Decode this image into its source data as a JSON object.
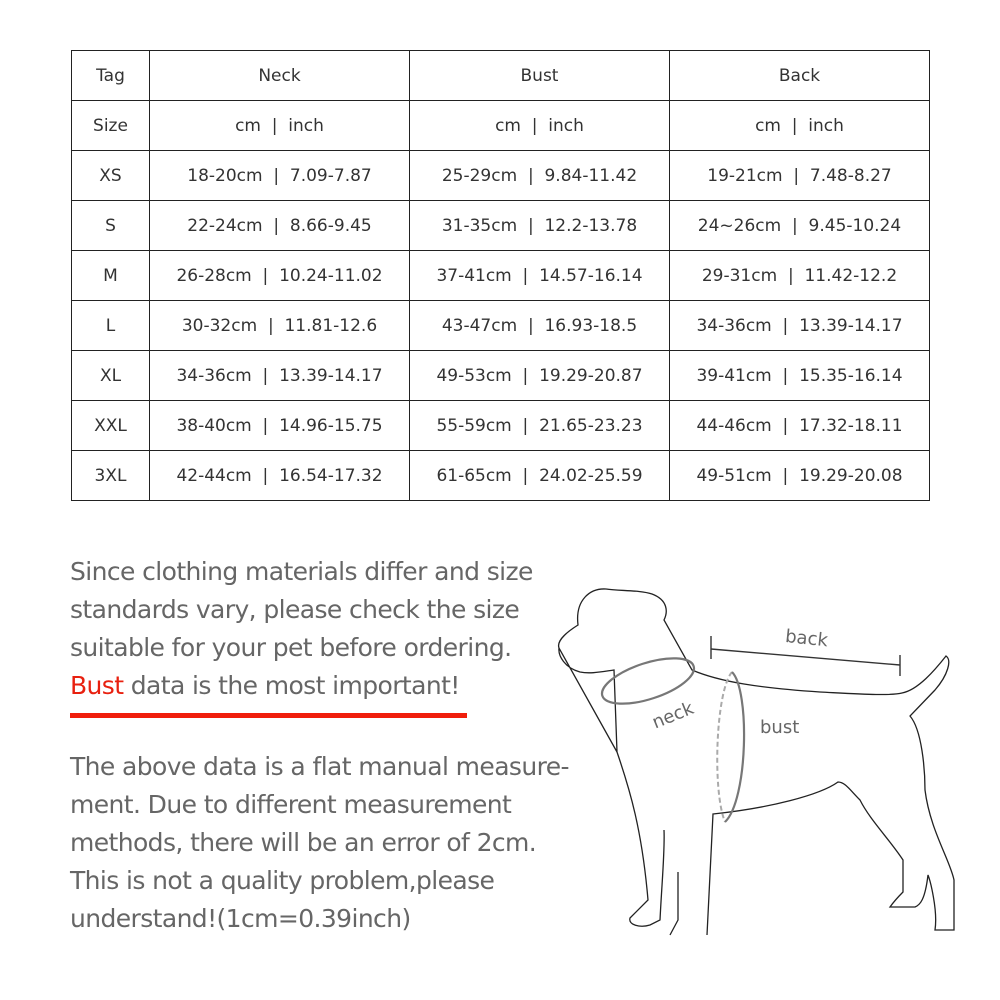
{
  "table": {
    "headers": [
      "Tag",
      "Neck",
      "Bust",
      "Back"
    ],
    "units": [
      "Size",
      "cm  |  inch",
      "cm  |  inch",
      "cm  |  inch"
    ],
    "rows": [
      [
        "XS",
        "18-20cm  |  7.09-7.87",
        "25-29cm  |  9.84-11.42",
        "19-21cm  |  7.48-8.27"
      ],
      [
        "S",
        "22-24cm  |  8.66-9.45",
        "31-35cm  |  12.2-13.78",
        "24~26cm  |  9.45-10.24"
      ],
      [
        "M",
        "26-28cm  |  10.24-11.02",
        "37-41cm  |  14.57-16.14",
        "29-31cm  |  11.42-12.2"
      ],
      [
        "L",
        "30-32cm  |  11.81-12.6",
        "43-47cm  |  16.93-18.5",
        "34-36cm  |  13.39-14.17"
      ],
      [
        "XL",
        "34-36cm  |  13.39-14.17",
        "49-53cm  |  19.29-20.87",
        "39-41cm  |  15.35-16.14"
      ],
      [
        "XXL",
        "38-40cm  |  14.96-15.75",
        "55-59cm  |  21.65-23.23",
        "44-46cm  |  17.32-18.11"
      ],
      [
        "3XL",
        "42-44cm  |  16.54-17.32",
        "61-65cm  |  24.02-25.59",
        "49-51cm  |  19.29-20.08"
      ]
    ]
  },
  "notes": {
    "line1": "Since clothing materials differ and size",
    "line2": "standards vary, please check the size",
    "line3": "suitable for your pet before ordering.",
    "highlight": "Bust",
    "line4_rest": " data is the most important!",
    "para2": [
      "The above data is a flat manual measure-",
      "ment. Due to different measurement",
      "methods, there will be an error of 2cm.",
      "This is not a quality problem,please",
      "understand!(1cm=0.39inch)"
    ]
  },
  "diagram": {
    "back": "back",
    "neck": "neck",
    "bust": "bust"
  },
  "colors": {
    "accent": "#f01e0c",
    "text": "#666666"
  }
}
